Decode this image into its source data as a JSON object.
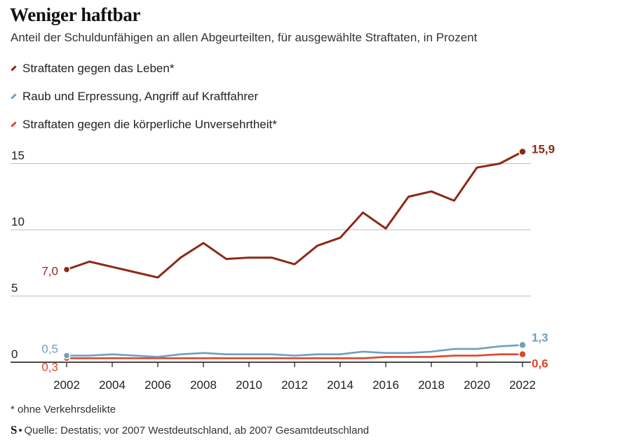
{
  "title": "Weniger haftbar",
  "subtitle": "Anteil der Schuldunfähigen an allen Abgeurteilten, für ausgewählte Straftaten, in Prozent",
  "footnote": "* ohne Verkehrsdelikte",
  "source": {
    "logo": "S",
    "text": "Quelle: Destatis; vor 2007 Westdeutschland, ab 2007 Gesamtdeutschland"
  },
  "chart_data": {
    "type": "line",
    "x": [
      2002,
      2003,
      2004,
      2005,
      2006,
      2007,
      2008,
      2009,
      2010,
      2011,
      2012,
      2013,
      2014,
      2015,
      2016,
      2017,
      2018,
      2019,
      2020,
      2021,
      2022
    ],
    "series": [
      {
        "name": "Straftaten gegen das Leben*",
        "color": "#8b2a15",
        "values": [
          7.0,
          7.6,
          7.2,
          6.8,
          6.4,
          7.9,
          9.0,
          7.8,
          7.9,
          7.9,
          7.4,
          8.8,
          9.4,
          11.3,
          10.1,
          12.5,
          12.9,
          12.2,
          14.7,
          15.0,
          15.9
        ],
        "start_label": "7,0",
        "end_label": "15,9"
      },
      {
        "name": "Raub und Erpressung, Angriff auf Kraftfahrer",
        "color": "#6f9fbe",
        "values": [
          0.5,
          0.5,
          0.6,
          0.5,
          0.4,
          0.6,
          0.7,
          0.6,
          0.6,
          0.6,
          0.5,
          0.6,
          0.6,
          0.8,
          0.7,
          0.7,
          0.8,
          1.0,
          1.0,
          1.2,
          1.3
        ],
        "start_label": "0,5",
        "end_label": "1,3"
      },
      {
        "name": "Straftaten gegen die körperliche Unversehrtheit*",
        "color": "#e0462b",
        "values": [
          0.3,
          0.3,
          0.3,
          0.3,
          0.3,
          0.3,
          0.3,
          0.3,
          0.3,
          0.3,
          0.3,
          0.3,
          0.3,
          0.3,
          0.4,
          0.4,
          0.4,
          0.5,
          0.5,
          0.6,
          0.6
        ],
        "start_label": "0,3",
        "end_label": "0,6"
      }
    ],
    "yticks": [
      0,
      5,
      10,
      15
    ],
    "ytick_labels": [
      "0",
      "5",
      "10",
      "15"
    ],
    "xticks": [
      2002,
      2004,
      2006,
      2008,
      2010,
      2012,
      2014,
      2016,
      2018,
      2020,
      2022
    ],
    "xtick_labels": [
      "2002",
      "2004",
      "2006",
      "2008",
      "2010",
      "2012",
      "2014",
      "2016",
      "2018",
      "2020",
      "2022"
    ],
    "ylim": [
      0,
      17
    ],
    "grid": true,
    "legend_position": "top-left"
  }
}
